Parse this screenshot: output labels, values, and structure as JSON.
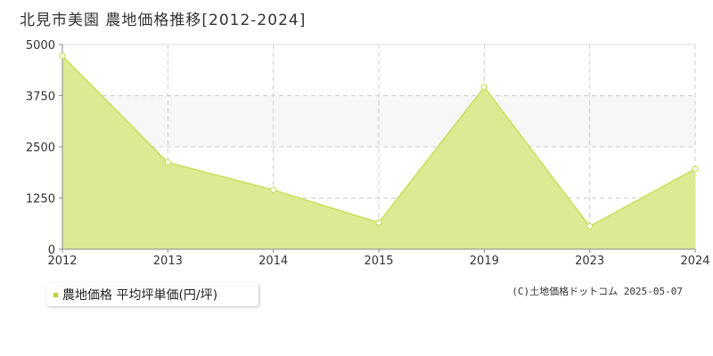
{
  "title": "北見市美園 農地価格推移[2012-2024]",
  "legend": {
    "label": "農地価格 平均坪単価(円/坪)"
  },
  "copyright": "(C)土地価格ドットコム 2025-05-07",
  "colors": {
    "fill": "#dcea94",
    "line": "#c8e05c",
    "marker_stroke": "#c8e05c",
    "marker_fill": "#ffffff",
    "grid": "#cccccc",
    "band": "#f7f7f7",
    "axis": "#888888"
  },
  "chart_data": {
    "type": "area",
    "title": "北見市美園 農地価格推移[2012-2024]",
    "xlabel": "",
    "ylabel": "",
    "categories": [
      "2012",
      "2013",
      "2014",
      "2015",
      "2019",
      "2023",
      "2024"
    ],
    "series": [
      {
        "name": "農地価格 平均坪単価(円/坪)",
        "values": [
          4720,
          2120,
          1450,
          650,
          3960,
          560,
          1960
        ]
      }
    ],
    "ylim": [
      0,
      5000
    ],
    "yticks": [
      "0",
      "1250",
      "2500",
      "3750",
      "5000"
    ],
    "grid": true,
    "legend_position": "bottom-left"
  }
}
